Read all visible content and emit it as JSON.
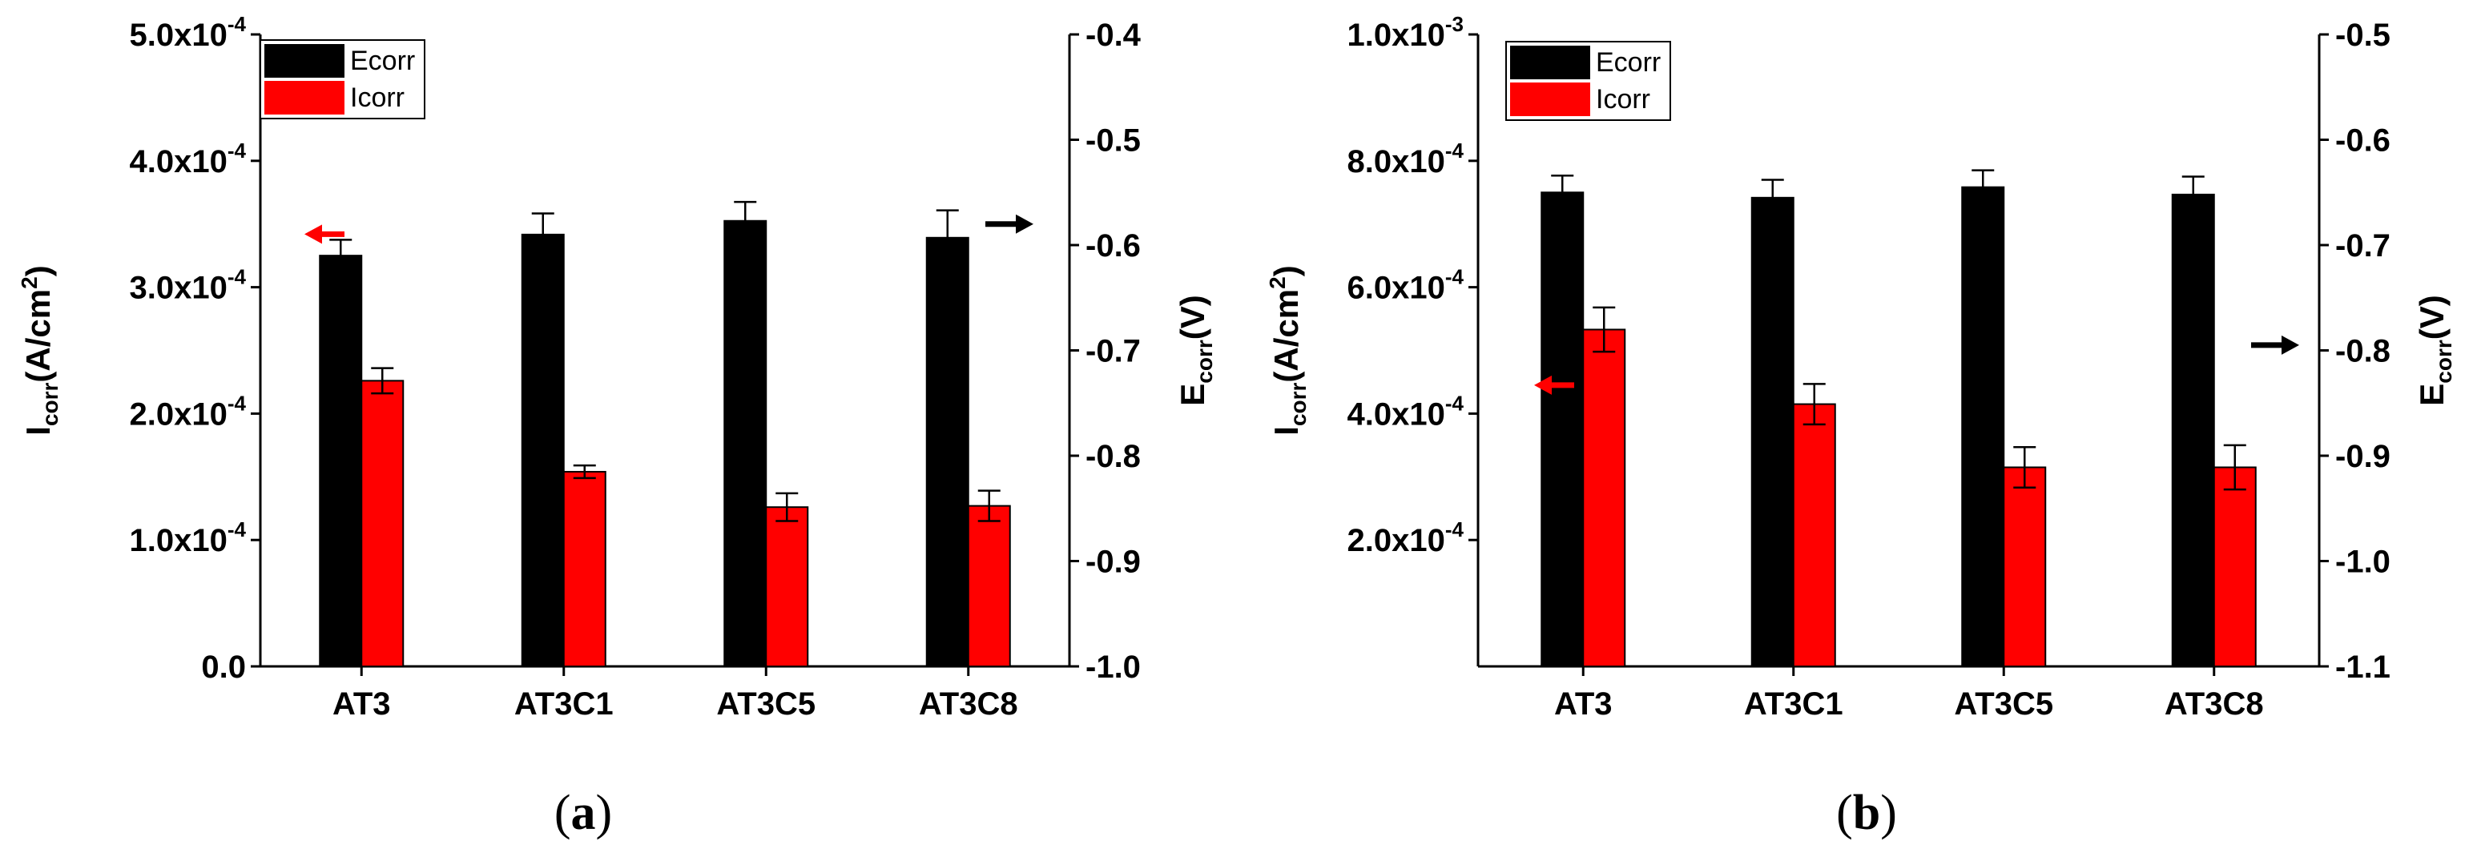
{
  "colors": {
    "ecorr": "#000000",
    "icorr": "#ff0000",
    "arrow_left": "#ff0000",
    "arrow_right": "#000000"
  },
  "chart_data": [
    {
      "type": "bar",
      "panel": "a",
      "caption": {
        "open": "(",
        "letter": "a",
        "close": ")"
      },
      "categories": [
        "AT3",
        "AT3C1",
        "AT3C5",
        "AT3C8"
      ],
      "series": [
        {
          "name": "Ecorr",
          "axis": "right",
          "values": [
            -0.61,
            -0.59,
            -0.577,
            -0.593
          ],
          "errors": [
            0.015,
            0.02,
            0.018,
            0.026
          ]
        },
        {
          "name": "Icorr",
          "axis": "left",
          "values": [
            0.000226,
            0.000154,
            0.000126,
            0.000127
          ],
          "errors": [
            1e-05,
            5e-06,
            1.1e-05,
            1.2e-05
          ]
        }
      ],
      "left_axis": {
        "label_main": "I",
        "label_sub": "corr",
        "label_rest": "(A/cm",
        "label_sup": "2",
        "label_end": ")",
        "ylim": [
          0,
          0.0005
        ],
        "ticks": [
          {
            "value": 0,
            "mant": "0.0",
            "exp": ""
          },
          {
            "value": 0.0001,
            "mant": "1.0x10",
            "exp": "-4"
          },
          {
            "value": 0.0002,
            "mant": "2.0x10",
            "exp": "-4"
          },
          {
            "value": 0.0003,
            "mant": "3.0x10",
            "exp": "-4"
          },
          {
            "value": 0.0004,
            "mant": "4.0x10",
            "exp": "-4"
          },
          {
            "value": 0.0005,
            "mant": "5.0x10",
            "exp": "-4"
          }
        ]
      },
      "right_axis": {
        "label_main": "E",
        "label_sub": "corr",
        "label_rest": "(V)",
        "ylim": [
          -1.0,
          -0.4
        ],
        "ticks": [
          "-0.4",
          "-0.5",
          "-0.6",
          "-0.7",
          "-0.8",
          "-0.9",
          "-1.0"
        ]
      },
      "arrows": {
        "left_at_value": 0.000342,
        "right_at_value": -0.58
      }
    },
    {
      "type": "bar",
      "panel": "b",
      "caption": {
        "open": "(",
        "letter": "b",
        "close": ")"
      },
      "categories": [
        "AT3",
        "AT3C1",
        "AT3C5",
        "AT3C8"
      ],
      "series": [
        {
          "name": "Ecorr",
          "axis": "right",
          "values": [
            -0.65,
            -0.655,
            -0.645,
            -0.652
          ],
          "errors": [
            0.016,
            0.017,
            0.016,
            0.017
          ]
        },
        {
          "name": "Icorr",
          "axis": "left",
          "values": [
            0.000533,
            0.000415,
            0.000315,
            0.000315
          ],
          "errors": [
            3.5e-05,
            3.2e-05,
            3.2e-05,
            3.5e-05
          ]
        }
      ],
      "left_axis": {
        "label_main": "I",
        "label_sub": "corr",
        "label_rest": "(A/cm",
        "label_sup": "2",
        "label_end": ")",
        "ylim": [
          0,
          0.001
        ],
        "ticks": [
          {
            "value": 0.0002,
            "mant": "2.0x10",
            "exp": "-4"
          },
          {
            "value": 0.0004,
            "mant": "4.0x10",
            "exp": "-4"
          },
          {
            "value": 0.0006,
            "mant": "6.0x10",
            "exp": "-4"
          },
          {
            "value": 0.0008,
            "mant": "8.0x10",
            "exp": "-4"
          },
          {
            "value": 0.001,
            "mant": "1.0x10",
            "exp": "-3"
          }
        ]
      },
      "right_axis": {
        "label_main": "E",
        "label_sub": "corr",
        "label_rest": "(V)",
        "ylim": [
          -1.1,
          -0.5
        ],
        "ticks": [
          "-0.5",
          "-0.6",
          "-0.7",
          "-0.8",
          "-0.9",
          "-1.0",
          "-1.1"
        ]
      },
      "arrows": {
        "left_at_value": 0.000445,
        "right_at_value": -0.795
      }
    }
  ]
}
